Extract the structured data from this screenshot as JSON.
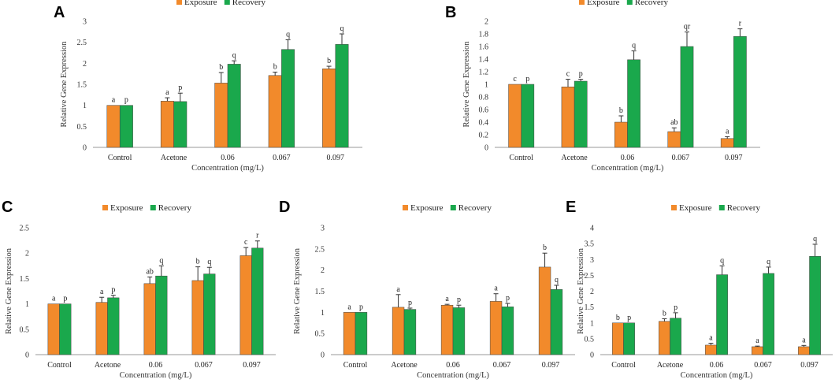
{
  "colors": {
    "exposure": "#f28a2b",
    "recovery": "#1aa84c"
  },
  "chart_data": [
    {
      "type": "bar",
      "panel": "A",
      "categories": [
        "Control",
        "Acetone",
        "0.06",
        "0.067",
        "0.097"
      ],
      "xlabel": "Concentration (mg/L)",
      "ylabel": "Relative Gene Expression",
      "ylim": [
        0,
        3
      ],
      "yticks": [
        "0",
        "0.5",
        "1",
        "1.5",
        "2",
        "2.5",
        "3"
      ],
      "legend": [
        "Exposure",
        "Recovery"
      ],
      "series": [
        {
          "name": "Exposure",
          "values": [
            1.0,
            1.1,
            1.53,
            1.71,
            1.87
          ],
          "errors": [
            0.0,
            0.08,
            0.25,
            0.08,
            0.06
          ],
          "labels": [
            "a",
            "a",
            "b",
            "b",
            "b"
          ]
        },
        {
          "name": "Recovery",
          "values": [
            1.0,
            1.09,
            1.98,
            2.33,
            2.45
          ],
          "errors": [
            0.0,
            0.2,
            0.08,
            0.23,
            0.25
          ],
          "labels": [
            "p",
            "p",
            "q",
            "q",
            "q"
          ]
        }
      ]
    },
    {
      "type": "bar",
      "panel": "B",
      "categories": [
        "Control",
        "Acetone",
        "0.06",
        "0.067",
        "0.097"
      ],
      "xlabel": "Concentration (mg/L)",
      "ylabel": "Relative Gene Expression",
      "ylim": [
        0,
        2
      ],
      "yticks": [
        "0",
        "0.2",
        "0.4",
        "0.6",
        "0.8",
        "1",
        "1.2",
        "1.4",
        "1.6",
        "1.8",
        "2"
      ],
      "legend": [
        "Exposure",
        "Recovery"
      ],
      "series": [
        {
          "name": "Exposure",
          "values": [
            1.0,
            0.96,
            0.4,
            0.25,
            0.14
          ],
          "errors": [
            0.0,
            0.12,
            0.1,
            0.06,
            0.03
          ],
          "labels": [
            "c",
            "c",
            "b",
            "ab",
            "a"
          ]
        },
        {
          "name": "Recovery",
          "values": [
            1.0,
            1.05,
            1.39,
            1.6,
            1.76
          ],
          "errors": [
            0.0,
            0.03,
            0.14,
            0.23,
            0.12
          ],
          "labels": [
            "p",
            "p",
            "q",
            "qr",
            "r"
          ]
        }
      ]
    },
    {
      "type": "bar",
      "panel": "C",
      "categories": [
        "Control",
        "Acetone",
        "0.06",
        "0.067",
        "0.097"
      ],
      "xlabel": "Concentration (mg/L)",
      "ylabel": "Relative Gene Expression",
      "ylim": [
        0,
        2.5
      ],
      "yticks": [
        "0",
        "0.5",
        "1",
        "1.5",
        "2",
        "2.5"
      ],
      "legend": [
        "Exposure",
        "Recovery"
      ],
      "series": [
        {
          "name": "Exposure",
          "values": [
            1.0,
            1.03,
            1.4,
            1.46,
            1.95
          ],
          "errors": [
            0.0,
            0.1,
            0.13,
            0.27,
            0.16
          ],
          "labels": [
            "a",
            "a",
            "ab",
            "b",
            "c"
          ]
        },
        {
          "name": "Recovery",
          "values": [
            1.0,
            1.12,
            1.55,
            1.59,
            2.1
          ],
          "errors": [
            0.0,
            0.05,
            0.2,
            0.13,
            0.14
          ],
          "labels": [
            "p",
            "p",
            "q",
            "q",
            "r"
          ]
        }
      ]
    },
    {
      "type": "bar",
      "panel": "D",
      "categories": [
        "Control",
        "Acetone",
        "0.06",
        "0.067",
        "0.097"
      ],
      "xlabel": "Concentration (mg/L)",
      "ylabel": "Relative Gene Expression",
      "ylim": [
        0,
        3
      ],
      "yticks": [
        "0",
        "0.5",
        "1",
        "1.5",
        "2",
        "2.5",
        "3"
      ],
      "legend": [
        "Exposure",
        "Recovery"
      ],
      "series": [
        {
          "name": "Exposure",
          "values": [
            1.0,
            1.12,
            1.17,
            1.26,
            2.07
          ],
          "errors": [
            0.0,
            0.3,
            0.02,
            0.18,
            0.33
          ],
          "labels": [
            "a",
            "a",
            "a",
            "a",
            "b"
          ]
        },
        {
          "name": "Recovery",
          "values": [
            1.0,
            1.07,
            1.11,
            1.13,
            1.54
          ],
          "errors": [
            0.0,
            0.03,
            0.06,
            0.08,
            0.1
          ],
          "labels": [
            "p",
            "p",
            "p",
            "p",
            "q"
          ]
        }
      ]
    },
    {
      "type": "bar",
      "panel": "E",
      "categories": [
        "Control",
        "Acetone",
        "0.06",
        "0.067",
        "0.097"
      ],
      "xlabel": "Concentration (mg/L)",
      "ylabel": "Relative Gene Expression",
      "ylim": [
        0,
        4
      ],
      "yticks": [
        "0",
        "0.5",
        "1",
        "1.5",
        "2",
        "2.5",
        "3",
        "3.5",
        "4"
      ],
      "legend": [
        "Exposure",
        "Recovery"
      ],
      "series": [
        {
          "name": "Exposure",
          "values": [
            1.0,
            1.05,
            0.3,
            0.25,
            0.25
          ],
          "errors": [
            0.0,
            0.08,
            0.06,
            0.02,
            0.04
          ],
          "labels": [
            "b",
            "b",
            "a",
            "a",
            "a"
          ]
        },
        {
          "name": "Recovery",
          "values": [
            1.0,
            1.15,
            2.52,
            2.56,
            3.1
          ],
          "errors": [
            0.0,
            0.17,
            0.28,
            0.2,
            0.38
          ],
          "labels": [
            "p",
            "p",
            "q",
            "q",
            "q"
          ]
        }
      ]
    }
  ]
}
